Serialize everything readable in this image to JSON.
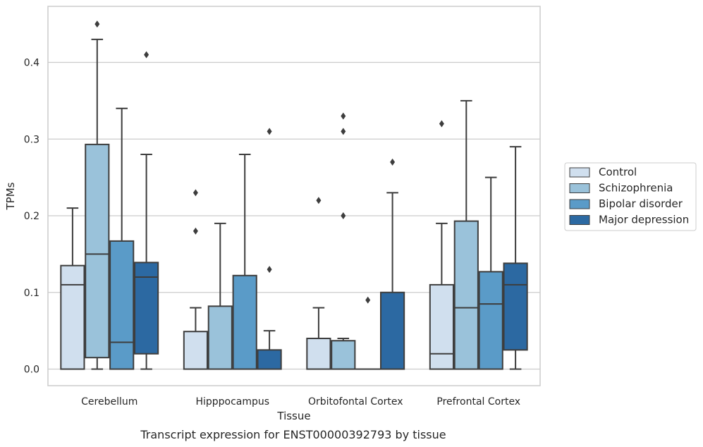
{
  "chart_data": {
    "type": "box",
    "caption": "Transcript expression for ENST00000392793 by tissue",
    "xlabel": "Tissue",
    "ylabel": "TPMs",
    "ylim": [
      -0.022,
      0.475
    ],
    "yticks": [
      0.0,
      0.1,
      0.2,
      0.3,
      0.4
    ],
    "ytick_labels": [
      "0.0",
      "0.1",
      "0.2",
      "0.3",
      "0.4"
    ],
    "grid": "horizontal",
    "legend_position": "right",
    "categories": [
      "Cerebellum",
      "Hipppocampus",
      "Orbitofontal Cortex",
      "Prefrontal Cortex"
    ],
    "series": [
      {
        "name": "Control",
        "color": "#d0dfee",
        "boxes": [
          {
            "whisker_low": 0.0,
            "q1": 0.0,
            "median": 0.11,
            "q3": 0.135,
            "whisker_high": 0.21,
            "outliers": []
          },
          {
            "whisker_low": 0.0,
            "q1": 0.0,
            "median": 0.0,
            "q3": 0.049,
            "whisker_high": 0.08,
            "outliers": [
              0.18,
              0.23
            ]
          },
          {
            "whisker_low": 0.0,
            "q1": 0.0,
            "median": 0.0,
            "q3": 0.04,
            "whisker_high": 0.08,
            "outliers": [
              0.22
            ]
          },
          {
            "whisker_low": 0.0,
            "q1": 0.0,
            "median": 0.02,
            "q3": 0.11,
            "whisker_high": 0.19,
            "outliers": [
              0.32
            ]
          }
        ]
      },
      {
        "name": "Schizophrenia",
        "color": "#9ac2da",
        "boxes": [
          {
            "whisker_low": 0.0,
            "q1": 0.015,
            "median": 0.15,
            "q3": 0.293,
            "whisker_high": 0.43,
            "outliers": [
              0.45
            ]
          },
          {
            "whisker_low": 0.0,
            "q1": 0.0,
            "median": 0.0,
            "q3": 0.082,
            "whisker_high": 0.19,
            "outliers": []
          },
          {
            "whisker_low": 0.0,
            "q1": 0.0,
            "median": 0.0,
            "q3": 0.037,
            "whisker_high": 0.04,
            "outliers": [
              0.2,
              0.31,
              0.33
            ]
          },
          {
            "whisker_low": 0.0,
            "q1": 0.0,
            "median": 0.08,
            "q3": 0.193,
            "whisker_high": 0.35,
            "outliers": []
          }
        ]
      },
      {
        "name": "Bipolar disorder",
        "color": "#5a9bc8",
        "boxes": [
          {
            "whisker_low": 0.0,
            "q1": 0.0,
            "median": 0.035,
            "q3": 0.167,
            "whisker_high": 0.34,
            "outliers": []
          },
          {
            "whisker_low": 0.0,
            "q1": 0.0,
            "median": 0.0,
            "q3": 0.122,
            "whisker_high": 0.28,
            "outliers": []
          },
          {
            "whisker_low": 0.0,
            "q1": 0.0,
            "median": 0.0,
            "q3": 0.0,
            "whisker_high": 0.0,
            "outliers": [
              0.09
            ]
          },
          {
            "whisker_low": 0.0,
            "q1": 0.0,
            "median": 0.085,
            "q3": 0.127,
            "whisker_high": 0.25,
            "outliers": []
          }
        ]
      },
      {
        "name": "Major depression",
        "color": "#2c69a2",
        "boxes": [
          {
            "whisker_low": 0.0,
            "q1": 0.02,
            "median": 0.12,
            "q3": 0.139,
            "whisker_high": 0.28,
            "outliers": [
              0.41
            ]
          },
          {
            "whisker_low": 0.0,
            "q1": 0.0,
            "median": 0.0,
            "q3": 0.025,
            "whisker_high": 0.05,
            "outliers": [
              0.13,
              0.31
            ]
          },
          {
            "whisker_low": 0.0,
            "q1": 0.0,
            "median": 0.0,
            "q3": 0.1,
            "whisker_high": 0.23,
            "outliers": [
              0.27
            ]
          },
          {
            "whisker_low": 0.0,
            "q1": 0.025,
            "median": 0.11,
            "q3": 0.138,
            "whisker_high": 0.29,
            "outliers": []
          }
        ]
      }
    ]
  }
}
